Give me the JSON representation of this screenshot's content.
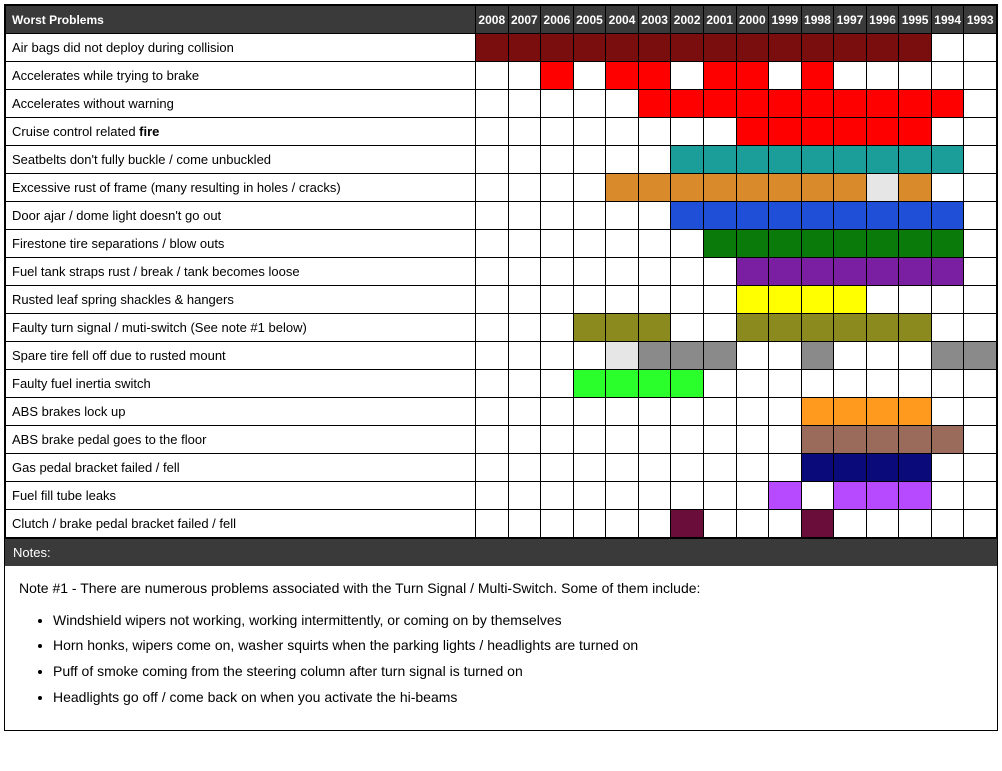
{
  "header_bg": "#3a3a3a",
  "header_fg": "#ffffff",
  "title": "Worst Problems",
  "years": [
    "2008",
    "2007",
    "2006",
    "2005",
    "2004",
    "2003",
    "2002",
    "2001",
    "2000",
    "1999",
    "1998",
    "1997",
    "1996",
    "1995",
    "1994",
    "1993"
  ],
  "colors": {
    "darkred": "#7a0d0d",
    "red": "#ff0000",
    "teal": "#1b9e99",
    "orange": "#d98a2b",
    "blue": "#1f4fd6",
    "green": "#0a7a0a",
    "purple": "#7a1fa2",
    "yellow": "#ffff00",
    "olive": "#8a8a1f",
    "gray": "#8a8a8a",
    "lightgray": "#e6e6e6",
    "lime": "#2bff2b",
    "orange2": "#ff9a1f",
    "brown": "#9a6a5a",
    "navy": "#0a0a7a",
    "violet": "#b74aff",
    "maroon": "#6a0d3a",
    "white": "#ffffff"
  },
  "rows": [
    {
      "label": "Air bags did not deploy during collision",
      "cells": [
        "darkred",
        "darkred",
        "darkred",
        "darkred",
        "darkred",
        "darkred",
        "darkred",
        "darkred",
        "darkred",
        "darkred",
        "darkred",
        "darkred",
        "darkred",
        "darkred",
        "",
        ""
      ]
    },
    {
      "label": "Accelerates while trying to brake",
      "cells": [
        "",
        "",
        "red",
        "",
        "red",
        "red",
        "",
        "red",
        "red",
        "",
        "red",
        "",
        "",
        "",
        "",
        ""
      ]
    },
    {
      "label": "Accelerates without warning",
      "cells": [
        "",
        "",
        "",
        "",
        "",
        "red",
        "red",
        "red",
        "red",
        "red",
        "red",
        "red",
        "red",
        "red",
        "red",
        ""
      ]
    },
    {
      "label_html": "Cruise control related <b>fire</b>",
      "label": "Cruise control related fire",
      "cells": [
        "",
        "",
        "",
        "",
        "",
        "",
        "",
        "",
        "red",
        "red",
        "red",
        "red",
        "red",
        "red",
        "",
        ""
      ]
    },
    {
      "label": "Seatbelts don't fully buckle / come unbuckled",
      "cells": [
        "",
        "",
        "",
        "",
        "",
        "",
        "teal",
        "teal",
        "teal",
        "teal",
        "teal",
        "teal",
        "teal",
        "teal",
        "teal",
        ""
      ]
    },
    {
      "label": "Excessive rust of frame (many resulting in holes / cracks)",
      "cells": [
        "",
        "",
        "",
        "",
        "orange",
        "orange",
        "orange",
        "orange",
        "orange",
        "orange",
        "orange",
        "orange",
        "lightgray",
        "orange",
        "",
        ""
      ]
    },
    {
      "label": "Door ajar / dome light doesn't go out",
      "cells": [
        "",
        "",
        "",
        "",
        "",
        "",
        "blue",
        "blue",
        "blue",
        "blue",
        "blue",
        "blue",
        "blue",
        "blue",
        "blue",
        ""
      ]
    },
    {
      "label": "Firestone tire separations / blow outs",
      "cells": [
        "",
        "",
        "",
        "",
        "",
        "",
        "",
        "green",
        "green",
        "green",
        "green",
        "green",
        "green",
        "green",
        "green",
        ""
      ]
    },
    {
      "label": "Fuel tank straps rust / break / tank becomes loose",
      "cells": [
        "",
        "",
        "",
        "",
        "",
        "",
        "",
        "",
        "purple",
        "purple",
        "purple",
        "purple",
        "purple",
        "purple",
        "purple",
        ""
      ]
    },
    {
      "label": "Rusted leaf spring shackles & hangers",
      "cells": [
        "",
        "",
        "",
        "",
        "",
        "",
        "",
        "",
        "yellow",
        "yellow",
        "yellow",
        "yellow",
        "",
        "",
        "",
        ""
      ]
    },
    {
      "label": "Faulty turn signal / muti-switch (See note #1 below)",
      "cells": [
        "",
        "",
        "",
        "olive",
        "olive",
        "olive",
        "",
        "",
        "olive",
        "olive",
        "olive",
        "olive",
        "olive",
        "olive",
        "",
        ""
      ]
    },
    {
      "label": "Spare tire fell off due to rusted mount",
      "cells": [
        "",
        "",
        "",
        "",
        "lightgray",
        "gray",
        "gray",
        "gray",
        "",
        "",
        "gray",
        "",
        "",
        "",
        "gray",
        "gray"
      ]
    },
    {
      "label": "Faulty fuel inertia switch",
      "cells": [
        "",
        "",
        "",
        "lime",
        "lime",
        "lime",
        "lime",
        "",
        "",
        "",
        "",
        "",
        "",
        "",
        "",
        ""
      ]
    },
    {
      "label": "ABS brakes lock up",
      "cells": [
        "",
        "",
        "",
        "",
        "",
        "",
        "",
        "",
        "",
        "",
        "orange2",
        "orange2",
        "orange2",
        "orange2",
        "",
        ""
      ]
    },
    {
      "label": "ABS brake pedal goes to the floor",
      "cells": [
        "",
        "",
        "",
        "",
        "",
        "",
        "",
        "",
        "",
        "",
        "brown",
        "brown",
        "brown",
        "brown",
        "brown",
        ""
      ]
    },
    {
      "label": "Gas pedal bracket failed / fell",
      "cells": [
        "",
        "",
        "",
        "",
        "",
        "",
        "",
        "",
        "",
        "",
        "navy",
        "navy",
        "navy",
        "navy",
        "",
        ""
      ]
    },
    {
      "label": "Fuel fill tube leaks",
      "cells": [
        "",
        "",
        "",
        "",
        "",
        "",
        "",
        "",
        "",
        "violet",
        "",
        "violet",
        "violet",
        "violet",
        "",
        ""
      ]
    },
    {
      "label": "Clutch / brake pedal bracket failed / fell",
      "cells": [
        "",
        "",
        "",
        "",
        "",
        "",
        "maroon",
        "",
        "",
        "",
        "maroon",
        "",
        "",
        "",
        "",
        ""
      ]
    }
  ],
  "notes_title": "Notes:",
  "notes_intro": "Note #1 - There are numerous problems associated with the Turn Signal / Multi-Switch. Some of them include:",
  "notes_items": [
    "Windshield wipers not working, working intermittently, or coming on by themselves",
    "Horn honks, wipers come on, washer squirts when the parking lights / headlights are turned on",
    "Puff of smoke coming from the steering column after turn signal is turned on",
    "Headlights go off / come back on when you activate the hi-beams"
  ]
}
